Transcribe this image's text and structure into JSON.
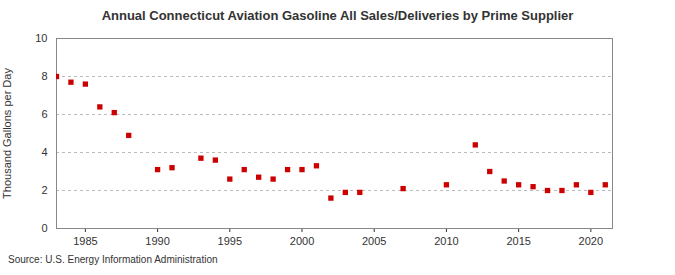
{
  "chart_data": {
    "type": "scatter",
    "title": "Annual Connecticut Aviation Gasoline All Sales/Deliveries by Prime Supplier",
    "y_label": "Thousand Gallons per Day",
    "source": "Source: U.S. Energy Information Administration",
    "x": [
      1983,
      1984,
      1985,
      1986,
      1987,
      1988,
      1990,
      1991,
      1993,
      1994,
      1995,
      1996,
      1997,
      1998,
      1999,
      2000,
      2001,
      2002,
      2003,
      2004,
      2007,
      2010,
      2012,
      2013,
      2014,
      2015,
      2016,
      2017,
      2018,
      2019,
      2020,
      2021
    ],
    "values": [
      8.0,
      7.7,
      7.6,
      6.4,
      6.1,
      4.9,
      3.1,
      3.2,
      3.7,
      3.6,
      2.6,
      3.1,
      2.7,
      2.6,
      3.1,
      3.1,
      3.3,
      1.6,
      1.9,
      1.9,
      2.1,
      2.3,
      4.4,
      3.0,
      2.5,
      2.3,
      2.2,
      2.0,
      2.0,
      2.3,
      1.9,
      2.3
    ],
    "color": "#cc0000",
    "marker": "square",
    "xlim": [
      1983,
      2021.5
    ],
    "xticks": [
      1985,
      1990,
      1995,
      2000,
      2005,
      2010,
      2015,
      2020
    ],
    "ylim": [
      0,
      10
    ],
    "yticks": [
      0,
      2,
      4,
      6,
      8,
      10
    ],
    "grid": true
  }
}
